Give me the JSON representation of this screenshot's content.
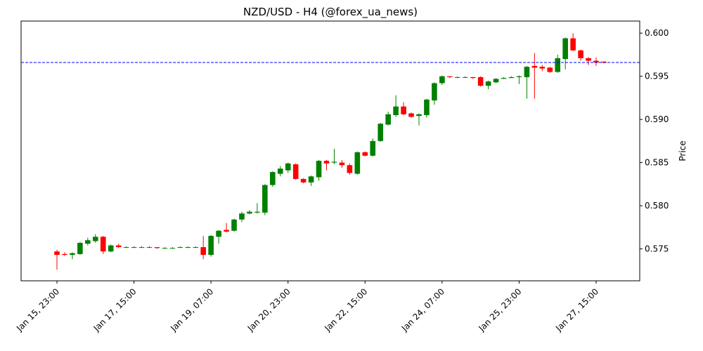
{
  "chart_data": {
    "type": "candlestick",
    "title": "NZD/USD - H4 (@forex_ua_news)",
    "ylabel": "Price",
    "categories": [
      "Jan 15, 23:00",
      null,
      null,
      null,
      null,
      null,
      null,
      null,
      null,
      null,
      "Jan 17, 15:00",
      null,
      null,
      null,
      null,
      null,
      null,
      null,
      null,
      null,
      "Jan 19, 07:00",
      null,
      null,
      null,
      null,
      null,
      null,
      null,
      null,
      null,
      "Jan 20, 23:00",
      null,
      null,
      null,
      null,
      null,
      null,
      null,
      null,
      null,
      "Jan 22, 15:00",
      null,
      null,
      null,
      null,
      null,
      null,
      null,
      null,
      null,
      "Jan 24, 07:00",
      null,
      null,
      null,
      null,
      null,
      null,
      null,
      null,
      null,
      "Jan 25, 23:00",
      null,
      null,
      null,
      null,
      null,
      null,
      null,
      null,
      null,
      "Jan 27, 15:00",
      null
    ],
    "open": [
      0.5747,
      0.5744,
      0.5743,
      0.5744,
      0.5756,
      0.5759,
      0.5764,
      0.5747,
      0.5754,
      0.5752,
      0.5752,
      0.5752,
      0.5752,
      0.5752,
      0.5751,
      0.5751,
      0.5752,
      0.5752,
      0.5752,
      0.5752,
      0.5743,
      0.5764,
      0.5772,
      0.5771,
      0.5784,
      0.5791,
      0.5792,
      0.5792,
      0.5824,
      0.5837,
      0.5841,
      0.5848,
      0.5831,
      0.5827,
      0.5833,
      0.5852,
      0.585,
      0.585,
      0.5847,
      0.5837,
      0.5862,
      0.5858,
      0.5875,
      0.5894,
      0.5905,
      0.5915,
      0.5907,
      0.5904,
      0.5905,
      0.5922,
      0.5942,
      0.595,
      0.5949,
      0.5949,
      0.5949,
      0.5949,
      0.5939,
      0.5943,
      0.5947,
      0.5948,
      0.5949,
      0.5949,
      0.5962,
      0.5961,
      0.596,
      0.5955,
      0.597,
      0.5994,
      0.598,
      0.5971,
      0.5968,
      0.5967
    ],
    "high": [
      0.5749,
      0.5746,
      0.5746,
      0.5758,
      0.5763,
      0.5767,
      0.5765,
      0.5755,
      0.5756,
      0.5753,
      0.5753,
      0.5753,
      0.5753,
      0.5752,
      0.5752,
      0.5752,
      0.5753,
      0.5753,
      0.5753,
      0.5765,
      0.5766,
      0.5772,
      0.578,
      0.5785,
      0.5793,
      0.5795,
      0.5803,
      0.5825,
      0.584,
      0.5846,
      0.585,
      0.5849,
      0.5832,
      0.5835,
      0.5853,
      0.5853,
      0.5866,
      0.5853,
      0.5849,
      0.5863,
      0.5863,
      0.5878,
      0.5896,
      0.5909,
      0.5928,
      0.592,
      0.5908,
      0.5907,
      0.5924,
      0.5943,
      0.5951,
      0.595,
      0.595,
      0.595,
      0.5949,
      0.595,
      0.5945,
      0.5948,
      0.5949,
      0.595,
      0.5951,
      0.5962,
      0.5977,
      0.5963,
      0.5961,
      0.5975,
      0.5995,
      0.6,
      0.5981,
      0.5972,
      0.5972,
      0.5967
    ],
    "low": [
      0.5726,
      0.5742,
      0.5738,
      0.5743,
      0.5754,
      0.5757,
      0.5744,
      0.5746,
      0.5751,
      0.5751,
      0.5751,
      0.5751,
      0.5751,
      0.575,
      0.575,
      0.575,
      0.5751,
      0.5751,
      0.5751,
      0.5738,
      0.5741,
      0.5756,
      0.5769,
      0.577,
      0.5781,
      0.579,
      0.5791,
      0.5789,
      0.5822,
      0.5834,
      0.5838,
      0.583,
      0.5826,
      0.5823,
      0.5829,
      0.5841,
      0.5848,
      0.5844,
      0.5836,
      0.5836,
      0.5857,
      0.5857,
      0.5874,
      0.5893,
      0.5903,
      0.5905,
      0.5902,
      0.5893,
      0.5902,
      0.5917,
      0.594,
      0.5948,
      0.5948,
      0.5948,
      0.5947,
      0.5938,
      0.5935,
      0.5942,
      0.5947,
      0.5948,
      0.5941,
      0.5924,
      0.5924,
      0.5956,
      0.5954,
      0.5954,
      0.5958,
      0.5979,
      0.5968,
      0.5963,
      0.5962,
      0.5965
    ],
    "close": [
      0.5743,
      0.5743,
      0.5745,
      0.5757,
      0.576,
      0.5764,
      0.5747,
      0.5754,
      0.5752,
      0.5752,
      0.5752,
      0.5752,
      0.5752,
      0.5751,
      0.5751,
      0.5751,
      0.5752,
      0.5752,
      0.5752,
      0.5743,
      0.5765,
      0.5771,
      0.577,
      0.5784,
      0.5791,
      0.5793,
      0.5793,
      0.5824,
      0.5839,
      0.5843,
      0.5849,
      0.5831,
      0.5827,
      0.5834,
      0.5852,
      0.5849,
      0.5851,
      0.5847,
      0.5838,
      0.5862,
      0.5858,
      0.5875,
      0.5895,
      0.5906,
      0.5915,
      0.5906,
      0.5903,
      0.5906,
      0.5923,
      0.5942,
      0.595,
      0.5949,
      0.5949,
      0.5949,
      0.5948,
      0.5939,
      0.5944,
      0.5947,
      0.5948,
      0.5949,
      0.595,
      0.5961,
      0.596,
      0.5959,
      0.5955,
      0.5971,
      0.5994,
      0.598,
      0.5971,
      0.5968,
      0.5966,
      0.5966
    ],
    "up_color": "green",
    "down_color": "red",
    "hline": {
      "value": 0.5966,
      "color": "blue"
    },
    "ylim": [
      0.5713,
      0.6014
    ],
    "yticks": [
      0.575,
      {
        "value": 0.58,
        "label": "0.580"
      },
      0.585,
      {
        "value": 0.59,
        "label": "0.590"
      },
      0.595,
      {
        "value": 0.6,
        "label": "0.600"
      }
    ]
  }
}
